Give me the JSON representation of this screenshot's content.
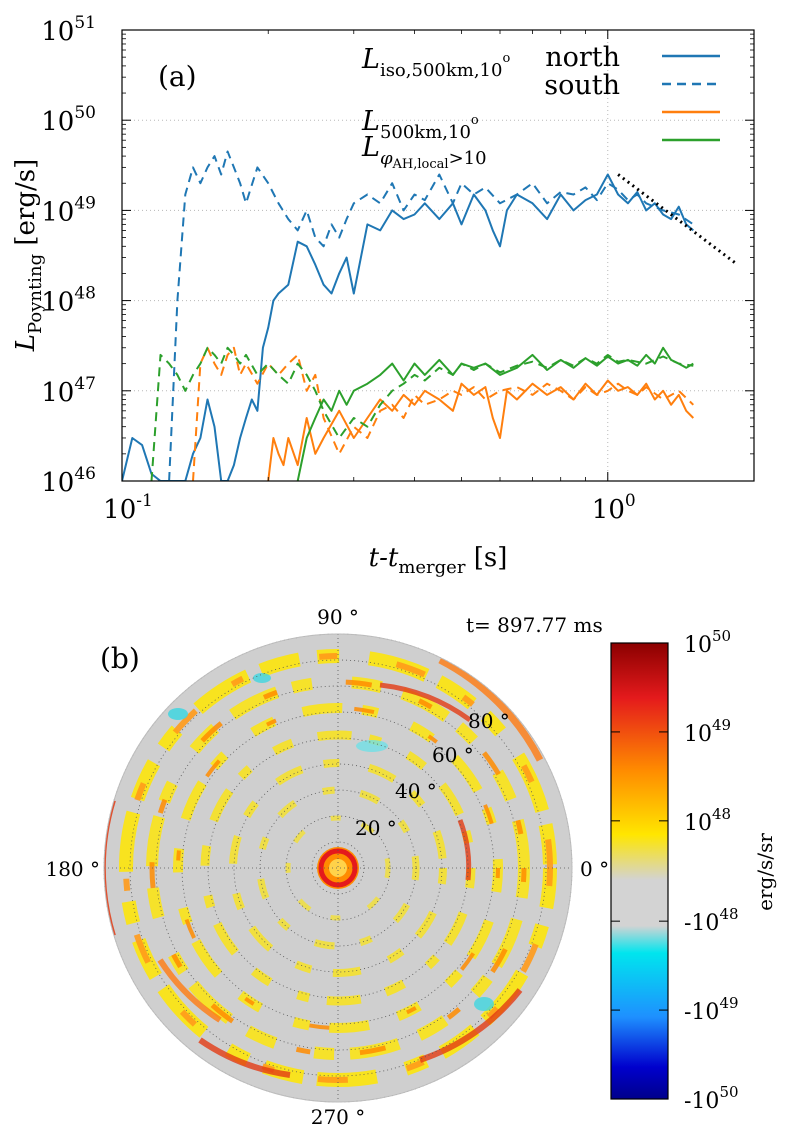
{
  "chart_data": [
    {
      "type": "line",
      "panel_label": "(a)",
      "xscale": "log",
      "yscale": "log",
      "xlim": [
        0.1,
        2.0
      ],
      "ylim": [
        1e+46,
        1e+51
      ],
      "xlabel": {
        "main": "t-t",
        "sub": "merger",
        "unit": " [s]"
      },
      "ylabel": {
        "main": "L",
        "sub": "Poynting",
        "unit": " [erg/s]"
      },
      "x_ticks": [
        {
          "value": 0.1,
          "mant": "10",
          "exp": "-1"
        },
        {
          "value": 1.0,
          "mant": "10",
          "exp": "0"
        }
      ],
      "y_ticks": [
        {
          "value": 1e+46,
          "mant": "10",
          "exp": "46"
        },
        {
          "value": 1e+47,
          "mant": "10",
          "exp": "47"
        },
        {
          "value": 1e+48,
          "mant": "10",
          "exp": "48"
        },
        {
          "value": 1e+49,
          "mant": "10",
          "exp": "49"
        },
        {
          "value": 1e+50,
          "mant": "10",
          "exp": "50"
        },
        {
          "value": 1e+51,
          "mant": "10",
          "exp": "51"
        }
      ],
      "legend": {
        "position": "top-right",
        "labels": {
          "iso_main": "L",
          "iso_sub": "iso,500km,10",
          "iso_sup": "o",
          "north": "north",
          "south": "south",
          "five_main": "L",
          "five_sub": "500km,10",
          "five_sup": "o",
          "phi_main": "L",
          "phi_sub1": "φ",
          "phi_sub2": "AH,local",
          "phi_tail": ">10"
        }
      },
      "series": [
        {
          "name": "L_iso,500km,10o north",
          "color": "#1f77b4",
          "dash": "solid",
          "x": [
            0.1,
            0.105,
            0.11,
            0.115,
            0.12,
            0.125,
            0.13,
            0.135,
            0.14,
            0.145,
            0.15,
            0.155,
            0.16,
            0.165,
            0.17,
            0.175,
            0.18,
            0.185,
            0.19,
            0.195,
            0.2,
            0.205,
            0.21,
            0.22,
            0.23,
            0.24,
            0.25,
            0.26,
            0.27,
            0.28,
            0.29,
            0.3,
            0.32,
            0.34,
            0.36,
            0.38,
            0.4,
            0.42,
            0.45,
            0.48,
            0.5,
            0.53,
            0.56,
            0.58,
            0.6,
            0.62,
            0.65,
            0.7,
            0.75,
            0.8,
            0.85,
            0.9,
            0.95,
            1.0,
            1.05,
            1.1,
            1.15,
            1.2,
            1.25,
            1.3,
            1.35,
            1.4,
            1.45,
            1.5
          ],
          "y": [
            1e+46,
            3e+46,
            2.5e+46,
            1.2e+46,
            1e+46,
            1e+46,
            1e+46,
            1e+46,
            2e+46,
            3e+46,
            8e+46,
            4e+46,
            1e+46,
            1e+46,
            1.5e+46,
            3e+46,
            5e+46,
            8e+46,
            6e+46,
            3e+47,
            5e+47,
            1e+48,
            1.2e+48,
            1.5e+48,
            4.5e+48,
            4e+48,
            2.5e+48,
            1.5e+48,
            1.2e+48,
            2e+48,
            3e+48,
            1.2e+48,
            7e+48,
            6e+48,
            1e+49,
            8e+48,
            9e+48,
            1.2e+49,
            8e+48,
            1.2e+49,
            7e+48,
            1.5e+49,
            1e+49,
            6e+48,
            4e+48,
            1e+49,
            1.5e+49,
            1.2e+49,
            8e+48,
            1.5e+49,
            1e+49,
            1.3e+49,
            1.5e+49,
            2.5e+49,
            1.5e+49,
            1.2e+49,
            1.6e+49,
            1e+49,
            1.2e+49,
            9e+48,
            8e+48,
            1.1e+49,
            7e+48,
            6e+48
          ]
        },
        {
          "name": "L_iso,500km,10o south",
          "color": "#1f77b4",
          "dash": "dashed",
          "x": [
            0.125,
            0.13,
            0.135,
            0.14,
            0.145,
            0.15,
            0.155,
            0.16,
            0.165,
            0.17,
            0.175,
            0.18,
            0.19,
            0.2,
            0.21,
            0.22,
            0.23,
            0.24,
            0.25,
            0.26,
            0.27,
            0.28,
            0.29,
            0.3,
            0.32,
            0.34,
            0.36,
            0.38,
            0.4,
            0.42,
            0.45,
            0.48,
            0.5,
            0.53,
            0.56,
            0.6,
            0.65,
            0.7,
            0.75,
            0.8,
            0.85,
            0.9,
            0.95,
            1.0,
            1.05,
            1.1,
            1.15,
            1.2,
            1.3,
            1.4,
            1.5
          ],
          "y": [
            1e+46,
            1e+48,
            1.5e+49,
            3e+49,
            2e+49,
            3e+49,
            4e+49,
            2.5e+49,
            4.5e+49,
            3e+49,
            2e+49,
            1.2e+49,
            3e+49,
            2e+49,
            1.2e+49,
            8e+48,
            6e+48,
            1e+49,
            5e+48,
            4e+48,
            7e+48,
            5e+48,
            8e+48,
            1.2e+49,
            1.5e+49,
            1.2e+49,
            2e+49,
            1e+49,
            1.5e+49,
            1.3e+49,
            2.5e+49,
            1.2e+49,
            2e+49,
            1.5e+49,
            1.8e+49,
            1.2e+49,
            1.5e+49,
            2e+49,
            1.2e+49,
            1.6e+49,
            1.5e+49,
            1.8e+49,
            1.3e+49,
            2e+49,
            1.7e+49,
            1.3e+49,
            1.5e+49,
            1.2e+49,
            1e+49,
            9e+48,
            7e+48
          ]
        },
        {
          "name": "L_500km,10o north",
          "color": "#ff7f0e",
          "dash": "solid",
          "x": [
            0.2,
            0.205,
            0.21,
            0.215,
            0.22,
            0.23,
            0.24,
            0.25,
            0.26,
            0.28,
            0.3,
            0.32,
            0.34,
            0.36,
            0.38,
            0.4,
            0.42,
            0.45,
            0.48,
            0.5,
            0.53,
            0.56,
            0.58,
            0.6,
            0.62,
            0.65,
            0.7,
            0.75,
            0.8,
            0.85,
            0.9,
            0.95,
            1.0,
            1.05,
            1.1,
            1.15,
            1.2,
            1.25,
            1.3,
            1.35,
            1.4,
            1.45,
            1.5
          ],
          "y": [
            1e+46,
            3e+46,
            2e+46,
            1.5e+46,
            3e+46,
            1.5e+46,
            5e+46,
            2e+46,
            3e+46,
            6e+46,
            3e+46,
            5e+46,
            8e+46,
            6e+46,
            9e+46,
            7e+46,
            1e+47,
            8e+46,
            6e+46,
            1.2e+47,
            9e+46,
            1.1e+47,
            5e+46,
            3e+46,
            1e+47,
            8e+46,
            1.2e+47,
            9e+46,
            1.1e+47,
            8e+46,
            1.2e+47,
            9e+46,
            1.3e+47,
            1e+47,
            1.1e+47,
            9e+46,
            1.2e+47,
            8e+46,
            1e+47,
            7e+46,
            9e+46,
            6e+46,
            5e+46
          ]
        },
        {
          "name": "L_500km,10o south",
          "color": "#ff7f0e",
          "dash": "dashed",
          "x": [
            0.14,
            0.145,
            0.15,
            0.155,
            0.16,
            0.165,
            0.17,
            0.175,
            0.18,
            0.19,
            0.2,
            0.21,
            0.22,
            0.23,
            0.24,
            0.25,
            0.26,
            0.28,
            0.3,
            0.32,
            0.34,
            0.36,
            0.38,
            0.4,
            0.42,
            0.45,
            0.48,
            0.5,
            0.53,
            0.56,
            0.6,
            0.65,
            0.7,
            0.75,
            0.8,
            0.85,
            0.9,
            0.95,
            1.0,
            1.05,
            1.1,
            1.15,
            1.2,
            1.3,
            1.4,
            1.5
          ],
          "y": [
            1e+46,
            2e+47,
            3e+47,
            2e+47,
            1.5e+47,
            2.5e+47,
            3e+47,
            1.5e+47,
            2e+47,
            1.2e+47,
            2e+47,
            1.5e+47,
            2e+47,
            2.5e+47,
            1e+47,
            1.5e+47,
            5e+46,
            2e+46,
            4e+46,
            3e+46,
            6e+46,
            7e+46,
            5e+46,
            9e+46,
            7e+46,
            8e+46,
            1e+47,
            9e+46,
            1.1e+47,
            8e+46,
            1e+47,
            1.1e+47,
            9e+46,
            1.2e+47,
            1e+47,
            8e+46,
            1.1e+47,
            9e+46,
            1e+47,
            1.2e+47,
            1e+47,
            9e+46,
            1.1e+47,
            8e+46,
            1e+47,
            7e+46
          ]
        },
        {
          "name": "L_phi_AH,local>10 north",
          "color": "#2ca02c",
          "dash": "solid",
          "x": [
            0.23,
            0.24,
            0.25,
            0.26,
            0.27,
            0.28,
            0.29,
            0.3,
            0.32,
            0.34,
            0.36,
            0.38,
            0.4,
            0.42,
            0.45,
            0.48,
            0.5,
            0.53,
            0.56,
            0.6,
            0.65,
            0.7,
            0.75,
            0.8,
            0.85,
            0.9,
            0.95,
            1.0,
            1.05,
            1.1,
            1.15,
            1.2,
            1.25,
            1.3,
            1.35,
            1.4,
            1.45,
            1.5
          ],
          "y": [
            1e+46,
            3e+46,
            5e+46,
            8e+46,
            6e+46,
            1e+47,
            7e+46,
            1e+47,
            1.2e+47,
            1.5e+47,
            2e+47,
            1.3e+47,
            2e+47,
            1.5e+47,
            2.2e+47,
            1.5e+47,
            2e+47,
            1.8e+47,
            2e+47,
            1.5e+47,
            1.8e+47,
            2.5e+47,
            1.7e+47,
            2.2e+47,
            1.8e+47,
            2.3e+47,
            1.9e+47,
            2.4e+47,
            2e+47,
            2.2e+47,
            1.9e+47,
            2.5e+47,
            2e+47,
            3e+47,
            2.2e+47,
            2e+47,
            1.8e+47,
            2e+47
          ]
        },
        {
          "name": "L_phi_AH,local>10 south",
          "color": "#2ca02c",
          "dash": "dashed",
          "x": [
            0.115,
            0.12,
            0.125,
            0.13,
            0.135,
            0.14,
            0.145,
            0.15,
            0.155,
            0.16,
            0.165,
            0.17,
            0.175,
            0.18,
            0.19,
            0.2,
            0.21,
            0.22,
            0.23,
            0.24,
            0.25,
            0.26,
            0.28,
            0.3,
            0.32,
            0.34,
            0.36,
            0.38,
            0.4,
            0.42,
            0.45,
            0.48,
            0.5,
            0.53,
            0.56,
            0.6,
            0.65,
            0.7,
            0.75,
            0.8,
            0.85,
            0.9,
            0.95,
            1.0,
            1.05,
            1.1,
            1.2,
            1.3,
            1.4,
            1.5
          ],
          "y": [
            1e+46,
            2.5e+47,
            2e+47,
            1.5e+47,
            1e+47,
            1.5e+47,
            2e+47,
            3e+47,
            2.5e+47,
            2e+47,
            3e+47,
            2.5e+47,
            2e+47,
            2.5e+47,
            1.5e+47,
            2e+47,
            1.5e+47,
            1.2e+47,
            2e+47,
            1.5e+47,
            1e+47,
            6e+46,
            3e+46,
            5e+46,
            4e+46,
            7e+46,
            1e+47,
            1.2e+47,
            1.5e+47,
            1.3e+47,
            1.8e+47,
            1.5e+47,
            2e+47,
            1.7e+47,
            2e+47,
            1.6e+47,
            1.9e+47,
            2.1e+47,
            1.8e+47,
            2.2e+47,
            1.9e+47,
            2.3e+47,
            2e+47,
            2.5e+47,
            2.1e+47,
            2.2e+47,
            2e+47,
            2.4e+47,
            2e+47,
            1.9e+47
          ]
        },
        {
          "name": "power-law fit",
          "color": "#000000",
          "dash": "dotted",
          "x": [
            1.05,
            1.85
          ],
          "y": [
            2.5e+49,
            2.5e+48
          ]
        }
      ]
    },
    {
      "type": "heatmap",
      "projection": "polar",
      "panel_label": "(b)",
      "time_label": "t= 897.77 ms",
      "angle_labels": {
        "top": "90 °",
        "left": "180 °",
        "right": "0 °",
        "bottom": "270 °"
      },
      "ring_labels": [
        "20 °",
        "40 °",
        "60 °",
        "80 °"
      ],
      "ring_values_deg": [
        10,
        20,
        30,
        40,
        50,
        60,
        70,
        80,
        90
      ],
      "colorbar": {
        "label": "erg/s/sr",
        "ticks": [
          {
            "mant": "10",
            "exp": "50"
          },
          {
            "mant": "10",
            "exp": "49"
          },
          {
            "mant": "10",
            "exp": "48"
          },
          {
            "mant": "-10",
            "exp": "48"
          },
          {
            "mant": "-10",
            "exp": "49"
          },
          {
            "mant": "-10",
            "exp": "50"
          }
        ],
        "colors": [
          "#8b0000",
          "#e41a1c",
          "#ff8c00",
          "#ffe600",
          "#d3d3d3",
          "#00e5ee",
          "#1e90ff",
          "#0000cd",
          "#00008b"
        ]
      }
    }
  ]
}
